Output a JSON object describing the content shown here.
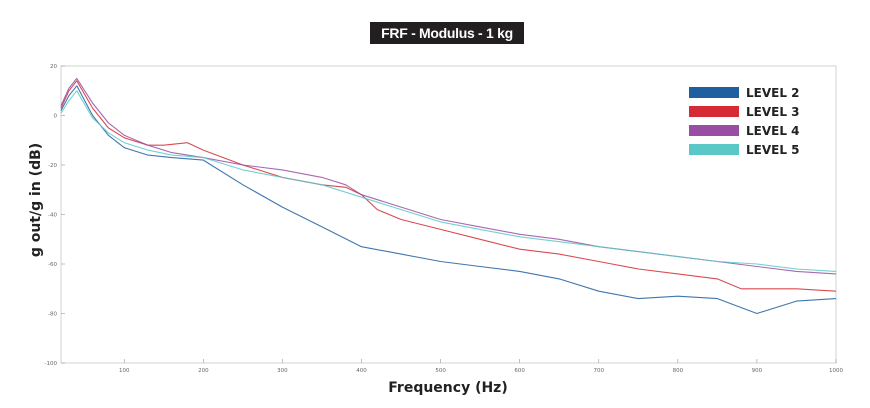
{
  "chart_data": {
    "type": "line",
    "title": "FRF - Modulus - 1 kg",
    "xlabel": "Frequency (Hz)",
    "ylabel": "g out/g in (dB)",
    "xlim": [
      20,
      1000
    ],
    "ylim": [
      -100,
      20
    ],
    "xticks": [
      100,
      200,
      300,
      400,
      500,
      600,
      700,
      800,
      900,
      1000
    ],
    "yticks": [
      20,
      0,
      -20,
      -40,
      -60,
      -80,
      -100
    ],
    "legend_position": "top-right",
    "grid": false,
    "series": [
      {
        "name": "LEVEL 2",
        "color": "#1f5fa0",
        "x": [
          20,
          30,
          40,
          60,
          80,
          100,
          130,
          160,
          200,
          250,
          300,
          350,
          400,
          450,
          500,
          550,
          600,
          650,
          700,
          750,
          800,
          850,
          900,
          950,
          1000
        ],
        "y": [
          2,
          8,
          12,
          0,
          -8,
          -13,
          -16,
          -17,
          -18,
          -28,
          -37,
          -45,
          -53,
          -56,
          -59,
          -61,
          -63,
          -66,
          -71,
          -74,
          -73,
          -74,
          -80,
          -75,
          -74
        ]
      },
      {
        "name": "LEVEL 3",
        "color": "#d42b35",
        "x": [
          20,
          30,
          40,
          60,
          80,
          100,
          130,
          150,
          180,
          200,
          250,
          300,
          350,
          380,
          400,
          420,
          450,
          500,
          550,
          600,
          650,
          700,
          750,
          800,
          850,
          880,
          900,
          950,
          1000
        ],
        "y": [
          3,
          10,
          14,
          3,
          -5,
          -9,
          -12,
          -12,
          -11,
          -14,
          -20,
          -25,
          -28,
          -29,
          -32,
          -38,
          -42,
          -46,
          -50,
          -54,
          -56,
          -59,
          -62,
          -64,
          -66,
          -70,
          -70,
          -70,
          -71
        ]
      },
      {
        "name": "LEVEL 4",
        "color": "#984ea3",
        "x": [
          20,
          30,
          40,
          60,
          80,
          100,
          130,
          160,
          200,
          250,
          300,
          350,
          380,
          400,
          450,
          500,
          550,
          600,
          650,
          700,
          750,
          800,
          850,
          900,
          950,
          1000
        ],
        "y": [
          4,
          11,
          15,
          5,
          -3,
          -8,
          -12,
          -15,
          -17,
          -20,
          -22,
          -25,
          -28,
          -32,
          -37,
          -42,
          -45,
          -48,
          -50,
          -53,
          -55,
          -57,
          -59,
          -61,
          -63,
          -64
        ]
      },
      {
        "name": "LEVEL 5",
        "color": "#5bc8c8",
        "x": [
          20,
          30,
          40,
          60,
          80,
          100,
          130,
          160,
          200,
          250,
          300,
          350,
          400,
          450,
          500,
          550,
          600,
          650,
          700,
          750,
          800,
          850,
          900,
          950,
          1000
        ],
        "y": [
          1,
          6,
          10,
          -1,
          -7,
          -11,
          -14,
          -16,
          -17,
          -22,
          -25,
          -28,
          -33,
          -38,
          -43,
          -46,
          -49,
          -51,
          -53,
          -55,
          -57,
          -59,
          -60,
          -62,
          -63
        ]
      }
    ]
  }
}
